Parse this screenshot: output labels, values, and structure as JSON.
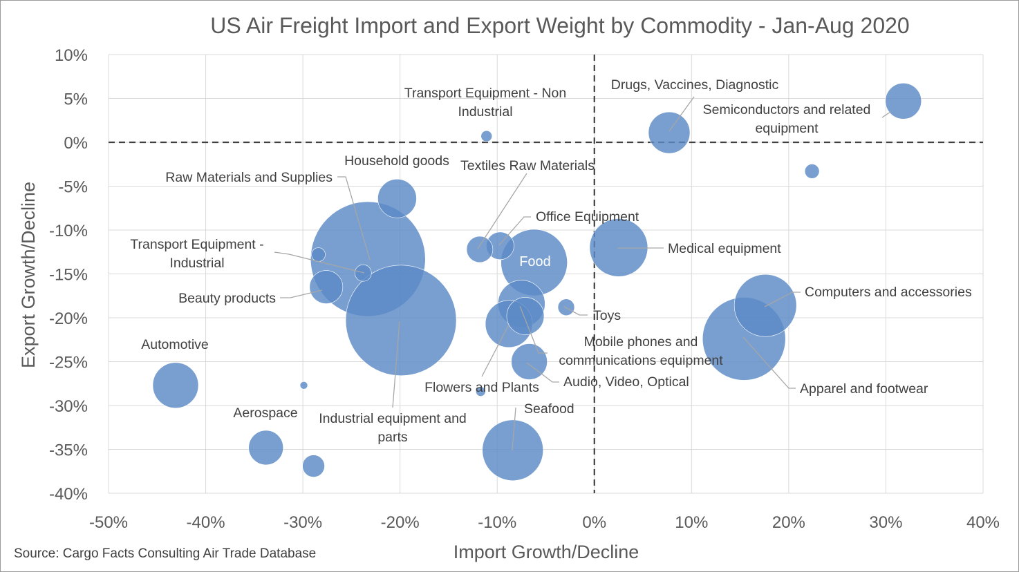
{
  "chart_data": {
    "type": "bubble",
    "title": "US Air Freight Import and Export Weight by Commodity - Jan-Aug 2020",
    "xlabel": "Import Growth/Decline",
    "ylabel": "Export Growth/Decline",
    "xlim": [
      -50,
      40
    ],
    "ylim": [
      -40,
      10
    ],
    "x_ticks": [
      "-50%",
      "-40%",
      "-30%",
      "-20%",
      "-10%",
      "0%",
      "10%",
      "20%",
      "30%",
      "40%"
    ],
    "y_ticks": [
      "10%",
      "5%",
      "0%",
      "-5%",
      "-10%",
      "-15%",
      "-20%",
      "-25%",
      "-30%",
      "-35%",
      "-40%"
    ],
    "grid": true,
    "reference_lines": {
      "x": 0,
      "y": 0,
      "style": "dashed"
    },
    "source": "Source: Cargo Facts Consulting Air Trade Database",
    "color": "#5b8ac6",
    "points": [
      {
        "id": "semiconductors",
        "x": 31.8,
        "y": 4.7,
        "size": 26,
        "label": [
          "Semiconductors and related",
          "equipment"
        ]
      },
      {
        "id": "drugs",
        "x": 7.7,
        "y": 1.1,
        "size": 30,
        "label": [
          "Drugs, Vaccines, Diagnostic"
        ]
      },
      {
        "id": "transport-nonind",
        "x": -11.1,
        "y": 0.7,
        "size": 8,
        "label": [
          "Transport Equipment - Non",
          "Industrial"
        ]
      },
      {
        "id": "unlabeled-1",
        "x": 22.4,
        "y": -3.3,
        "size": 10.5,
        "label": []
      },
      {
        "id": "household",
        "x": -20.3,
        "y": -6.4,
        "size": 28,
        "label": [
          "Household goods"
        ]
      },
      {
        "id": "raw-materials",
        "x": -23.3,
        "y": -13.3,
        "size": 83,
        "label": [
          "Raw Materials and Supplies"
        ]
      },
      {
        "id": "textiles",
        "x": -11.8,
        "y": -12.2,
        "size": 19,
        "label": [
          "Textiles Raw Materials"
        ]
      },
      {
        "id": "office",
        "x": -9.7,
        "y": -11.8,
        "size": 20,
        "label": [
          "Office Equipment"
        ]
      },
      {
        "id": "food",
        "x": -6.2,
        "y": -13.7,
        "size": 48,
        "label": [
          "Food"
        ]
      },
      {
        "id": "medical",
        "x": 2.5,
        "y": -12.0,
        "size": 42,
        "label": [
          "Medical equipment"
        ]
      },
      {
        "id": "transport-ind",
        "x": -28.4,
        "y": -12.8,
        "size": 10,
        "label": [
          "Transport Equipment -",
          "Industrial"
        ]
      },
      {
        "id": "unlabeled-2",
        "x": -23.8,
        "y": -14.9,
        "size": 12,
        "label": []
      },
      {
        "id": "beauty",
        "x": -27.6,
        "y": -16.5,
        "size": 24,
        "label": [
          "Beauty products"
        ]
      },
      {
        "id": "industrial",
        "x": -19.9,
        "y": -20.3,
        "size": 80,
        "label": [
          "Industrial equipment and",
          "parts"
        ]
      },
      {
        "id": "mobile",
        "x": -7.5,
        "y": -18.4,
        "size": 34,
        "label": [
          "Mobile phones and",
          "communications equipment"
        ]
      },
      {
        "id": "audio-video",
        "x": -7.1,
        "y": -19.8,
        "size": 27,
        "label": [
          "Audio, Video, Optical"
        ]
      },
      {
        "id": "flowers",
        "x": -8.8,
        "y": -20.7,
        "size": 34,
        "label": [
          "Flowers and Plants"
        ]
      },
      {
        "id": "toys",
        "x": -2.9,
        "y": -18.8,
        "size": 12,
        "label": [
          "Toys"
        ]
      },
      {
        "id": "computers",
        "x": 17.6,
        "y": -18.6,
        "size": 45,
        "label": [
          "Computers and accessories"
        ]
      },
      {
        "id": "apparel",
        "x": 15.4,
        "y": -22.4,
        "size": 60,
        "label": [
          "Apparel and footwear"
        ]
      },
      {
        "id": "electronics-other",
        "x": -6.7,
        "y": -25.0,
        "size": 26,
        "label": []
      },
      {
        "id": "automotive",
        "x": -43.1,
        "y": -27.7,
        "size": 33,
        "label": [
          "Automotive"
        ]
      },
      {
        "id": "unlabeled-3",
        "x": -29.9,
        "y": -27.7,
        "size": 5.5,
        "label": []
      },
      {
        "id": "unlabeled-4",
        "x": -11.7,
        "y": -28.4,
        "size": 7,
        "label": []
      },
      {
        "id": "aerospace",
        "x": -33.8,
        "y": -34.8,
        "size": 25,
        "label": [
          "Aerospace"
        ]
      },
      {
        "id": "unlabeled-5",
        "x": -28.9,
        "y": -36.9,
        "size": 16,
        "label": []
      },
      {
        "id": "seafood",
        "x": -8.4,
        "y": -35.1,
        "size": 44,
        "label": [
          "Seafood"
        ]
      }
    ]
  }
}
